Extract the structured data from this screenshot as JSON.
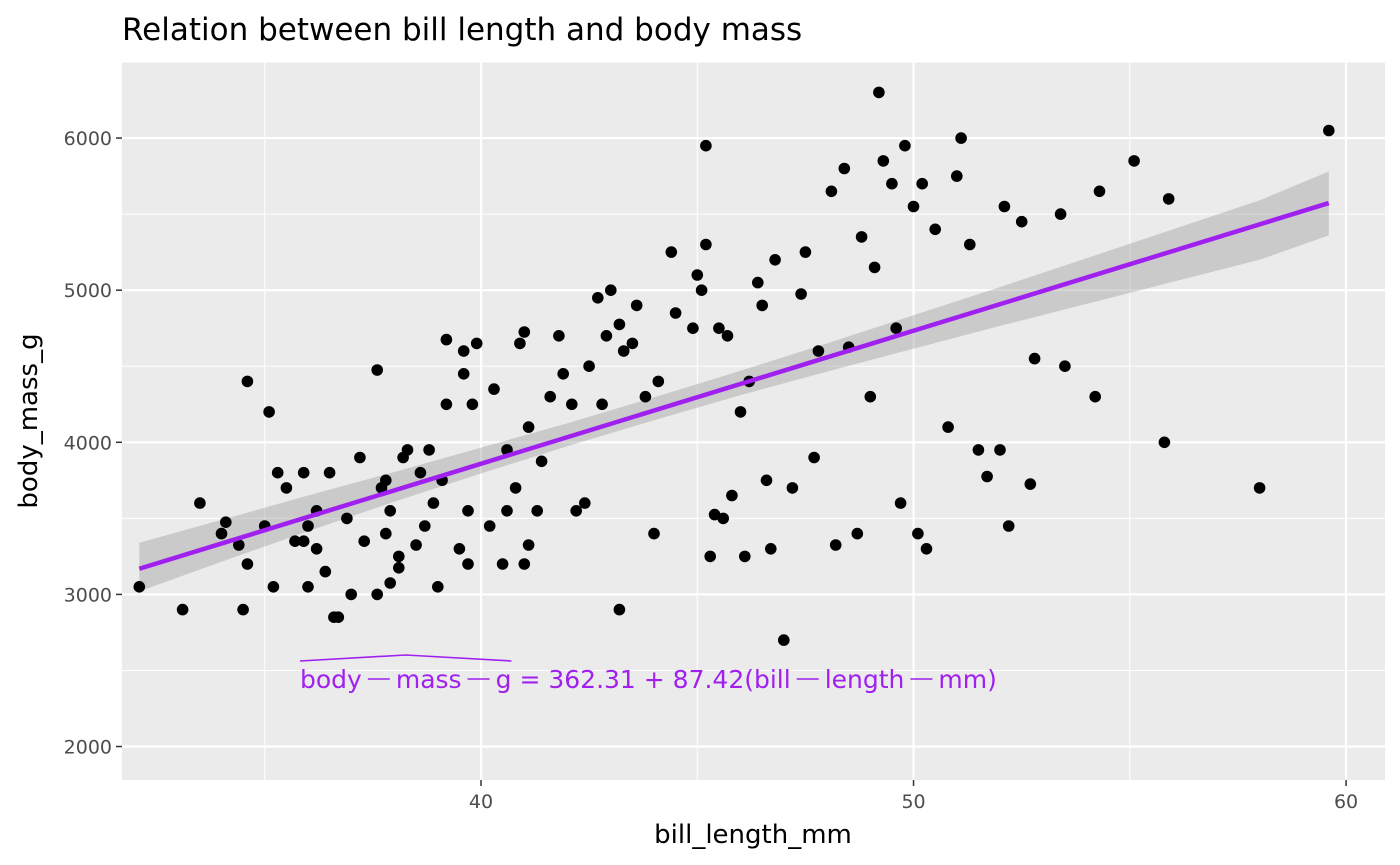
{
  "chart_data": {
    "type": "scatter",
    "title": "Relation between bill length and body mass",
    "xlabel": "bill_length_mm",
    "ylabel": "body_mass_g",
    "xlim": [
      31.7,
      60.9
    ],
    "ylim": [
      1780,
      6500
    ],
    "x_ticks": [
      40,
      50,
      60
    ],
    "y_ticks": [
      2000,
      3000,
      4000,
      5000,
      6000
    ],
    "x_minor_ticks": [
      35,
      45,
      55
    ],
    "y_minor_ticks": [
      2500,
      3500,
      4500,
      5500,
      6500
    ],
    "grid": true,
    "legend": "none",
    "colors": {
      "panel": "#ebebeb",
      "grid": "#ffffff",
      "points": "#000000",
      "fit_line": "#a020f0",
      "ribbon": "#999999"
    },
    "points": [
      [
        32.1,
        3050
      ],
      [
        33.1,
        2900
      ],
      [
        33.5,
        3600
      ],
      [
        34.0,
        3400
      ],
      [
        34.1,
        3475
      ],
      [
        34.4,
        3325
      ],
      [
        34.5,
        2900
      ],
      [
        34.6,
        3200
      ],
      [
        34.6,
        4400
      ],
      [
        35.0,
        3450
      ],
      [
        35.1,
        4200
      ],
      [
        35.2,
        3050
      ],
      [
        35.3,
        3800
      ],
      [
        35.5,
        3700
      ],
      [
        35.7,
        3350
      ],
      [
        35.9,
        3350
      ],
      [
        35.9,
        3800
      ],
      [
        36.0,
        3450
      ],
      [
        36.0,
        3050
      ],
      [
        36.2,
        3300
      ],
      [
        36.2,
        3550
      ],
      [
        36.4,
        3150
      ],
      [
        36.5,
        3800
      ],
      [
        36.6,
        2850
      ],
      [
        36.7,
        2850
      ],
      [
        36.9,
        3500
      ],
      [
        37.0,
        3000
      ],
      [
        37.2,
        3900
      ],
      [
        37.3,
        3350
      ],
      [
        37.6,
        3000
      ],
      [
        37.6,
        4475
      ],
      [
        37.7,
        3700
      ],
      [
        37.8,
        3400
      ],
      [
        37.8,
        3750
      ],
      [
        37.9,
        3550
      ],
      [
        37.9,
        3075
      ],
      [
        38.1,
        3250
      ],
      [
        38.1,
        3175
      ],
      [
        38.2,
        3900
      ],
      [
        38.3,
        3950
      ],
      [
        38.5,
        3325
      ],
      [
        38.6,
        3800
      ],
      [
        38.7,
        3450
      ],
      [
        38.8,
        3950
      ],
      [
        38.9,
        3600
      ],
      [
        39.0,
        3050
      ],
      [
        39.1,
        3750
      ],
      [
        39.2,
        4675
      ],
      [
        39.2,
        4250
      ],
      [
        39.5,
        3300
      ],
      [
        39.6,
        4450
      ],
      [
        39.6,
        4600
      ],
      [
        39.7,
        3550
      ],
      [
        39.7,
        3200
      ],
      [
        39.8,
        4250
      ],
      [
        39.9,
        4650
      ],
      [
        40.2,
        3450
      ],
      [
        40.3,
        4350
      ],
      [
        40.5,
        3200
      ],
      [
        40.6,
        3950
      ],
      [
        40.6,
        3550
      ],
      [
        40.8,
        3700
      ],
      [
        40.9,
        4650
      ],
      [
        41.0,
        4725
      ],
      [
        41.0,
        3200
      ],
      [
        41.1,
        4100
      ],
      [
        41.1,
        3325
      ],
      [
        41.3,
        3550
      ],
      [
        41.4,
        3875
      ],
      [
        41.6,
        4300
      ],
      [
        41.8,
        4700
      ],
      [
        41.9,
        4450
      ],
      [
        42.1,
        4250
      ],
      [
        42.2,
        3550
      ],
      [
        42.4,
        3600
      ],
      [
        42.5,
        4500
      ],
      [
        42.7,
        4950
      ],
      [
        42.8,
        4250
      ],
      [
        42.9,
        4700
      ],
      [
        43.0,
        5000
      ],
      [
        43.2,
        4775
      ],
      [
        43.2,
        2900
      ],
      [
        43.3,
        4600
      ],
      [
        43.5,
        4650
      ],
      [
        43.6,
        4900
      ],
      [
        43.8,
        4300
      ],
      [
        44.0,
        3400
      ],
      [
        44.1,
        4400
      ],
      [
        44.4,
        5250
      ],
      [
        44.5,
        4850
      ],
      [
        44.9,
        4750
      ],
      [
        45.0,
        5100
      ],
      [
        45.1,
        5000
      ],
      [
        45.2,
        5950
      ],
      [
        45.2,
        5300
      ],
      [
        45.3,
        3250
      ],
      [
        45.4,
        3525
      ],
      [
        45.5,
        4750
      ],
      [
        45.6,
        3500
      ],
      [
        45.7,
        4700
      ],
      [
        45.8,
        3650
      ],
      [
        46.0,
        4200
      ],
      [
        46.1,
        3250
      ],
      [
        46.2,
        4400
      ],
      [
        46.4,
        5050
      ],
      [
        46.5,
        4900
      ],
      [
        46.6,
        3750
      ],
      [
        46.7,
        3300
      ],
      [
        46.8,
        5200
      ],
      [
        47.0,
        2700
      ],
      [
        47.2,
        3700
      ],
      [
        47.4,
        4975
      ],
      [
        47.5,
        5250
      ],
      [
        47.7,
        3900
      ],
      [
        47.8,
        4600
      ],
      [
        48.1,
        5650
      ],
      [
        48.2,
        3325
      ],
      [
        48.4,
        5800
      ],
      [
        48.5,
        4625
      ],
      [
        48.7,
        3400
      ],
      [
        48.8,
        5350
      ],
      [
        49.0,
        4300
      ],
      [
        49.1,
        5150
      ],
      [
        49.2,
        6300
      ],
      [
        49.3,
        5850
      ],
      [
        49.5,
        5700
      ],
      [
        49.6,
        4750
      ],
      [
        49.7,
        3600
      ],
      [
        49.8,
        5950
      ],
      [
        50.0,
        5550
      ],
      [
        50.1,
        3400
      ],
      [
        50.2,
        5700
      ],
      [
        50.3,
        3300
      ],
      [
        50.5,
        5400
      ],
      [
        50.8,
        4100
      ],
      [
        51.0,
        5750
      ],
      [
        51.1,
        6000
      ],
      [
        51.3,
        5300
      ],
      [
        51.5,
        3950
      ],
      [
        51.7,
        3775
      ],
      [
        52.0,
        3950
      ],
      [
        52.1,
        5550
      ],
      [
        52.2,
        3450
      ],
      [
        52.5,
        5450
      ],
      [
        52.7,
        3725
      ],
      [
        52.8,
        4550
      ],
      [
        53.4,
        5500
      ],
      [
        53.5,
        4500
      ],
      [
        54.2,
        4300
      ],
      [
        54.3,
        5650
      ],
      [
        55.1,
        5850
      ],
      [
        55.8,
        4000
      ],
      [
        55.9,
        5600
      ],
      [
        58.0,
        3700
      ],
      [
        59.6,
        6050
      ]
    ],
    "fit": {
      "intercept": 362.31,
      "slope": 87.42,
      "x_range": [
        32.1,
        59.6
      ],
      "ci": [
        [
          32.1,
          3020,
          3340
        ],
        [
          34.0,
          3215,
          3490
        ],
        [
          36.0,
          3415,
          3650
        ],
        [
          38.0,
          3610,
          3805
        ],
        [
          40.0,
          3795,
          3965
        ],
        [
          42.0,
          3975,
          4125
        ],
        [
          44.0,
          4145,
          4295
        ],
        [
          46.0,
          4310,
          4470
        ],
        [
          48.0,
          4465,
          4650
        ],
        [
          50.0,
          4615,
          4835
        ],
        [
          52.0,
          4765,
          5020
        ],
        [
          54.0,
          4910,
          5210
        ],
        [
          56.0,
          5055,
          5400
        ],
        [
          58.0,
          5200,
          5590
        ],
        [
          59.6,
          5360,
          5780
        ]
      ]
    },
    "annotation": {
      "lhs_parts": [
        "body",
        "mass",
        "g"
      ],
      "equation": "= 362.31 + 87.42(bill",
      "rhs_parts": [
        "length",
        "mm)"
      ],
      "color": "#a020f0"
    }
  }
}
